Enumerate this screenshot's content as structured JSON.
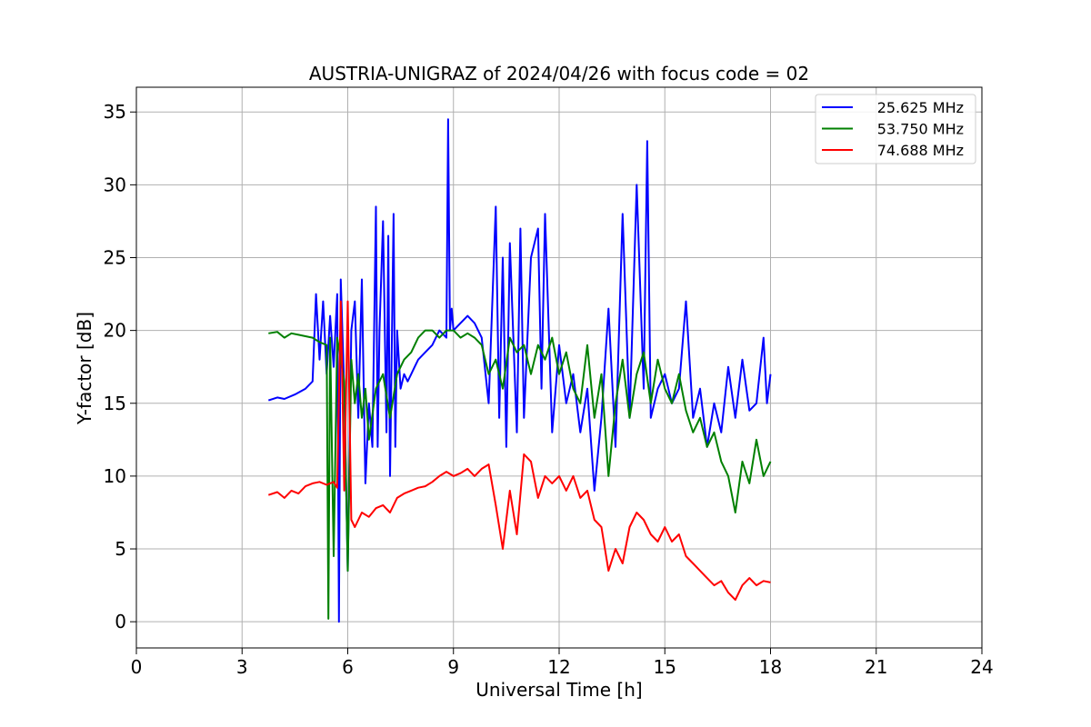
{
  "chart_data": {
    "type": "line",
    "title": "AUSTRIA-UNIGRAZ of 2024/04/26 with focus code = 02",
    "xlabel": "Universal Time [h]",
    "ylabel": "Y-factor [dB]",
    "xlim": [
      0,
      24
    ],
    "ylim": [
      -1.8,
      36.7
    ],
    "xticks": [
      0,
      3,
      6,
      9,
      12,
      15,
      18,
      21,
      24
    ],
    "yticks": [
      0,
      5,
      10,
      15,
      20,
      25,
      30,
      35
    ],
    "grid": true,
    "legend_position": "top-right",
    "series": [
      {
        "name": "25.625 MHz",
        "color": "#0000ff",
        "x": [
          3.75,
          4.0,
          4.2,
          4.5,
          4.8,
          5.0,
          5.1,
          5.2,
          5.3,
          5.4,
          5.5,
          5.6,
          5.7,
          5.75,
          5.8,
          5.9,
          6.0,
          6.1,
          6.2,
          6.3,
          6.4,
          6.5,
          6.6,
          6.7,
          6.8,
          6.85,
          6.9,
          7.0,
          7.1,
          7.15,
          7.2,
          7.3,
          7.35,
          7.4,
          7.5,
          7.6,
          7.7,
          7.8,
          7.9,
          8.0,
          8.2,
          8.4,
          8.6,
          8.8,
          8.85,
          8.9,
          8.95,
          9.0,
          9.2,
          9.4,
          9.6,
          9.8,
          10.0,
          10.2,
          10.3,
          10.4,
          10.5,
          10.6,
          10.8,
          10.9,
          11.0,
          11.2,
          11.4,
          11.5,
          11.6,
          11.8,
          12.0,
          12.2,
          12.4,
          12.6,
          12.8,
          13.0,
          13.2,
          13.4,
          13.6,
          13.8,
          14.0,
          14.2,
          14.4,
          14.5,
          14.6,
          14.8,
          15.0,
          15.2,
          15.4,
          15.6,
          15.8,
          16.0,
          16.2,
          16.4,
          16.6,
          16.8,
          17.0,
          17.2,
          17.4,
          17.6,
          17.8,
          17.9,
          18.0
        ],
        "y": [
          15.2,
          15.4,
          15.3,
          15.6,
          16.0,
          16.5,
          22.5,
          18.0,
          22.0,
          17.0,
          21.0,
          17.5,
          22.5,
          0.0,
          23.5,
          16.0,
          3.5,
          20.0,
          22.0,
          14.0,
          23.5,
          9.5,
          15.0,
          12.0,
          28.5,
          12.0,
          20.0,
          27.5,
          13.0,
          26.5,
          10.0,
          28.0,
          12.0,
          20.0,
          16.0,
          17.0,
          16.5,
          17.0,
          17.5,
          18.0,
          18.5,
          19.0,
          20.0,
          19.5,
          34.5,
          20.0,
          21.5,
          20.0,
          20.5,
          21.0,
          20.5,
          19.5,
          15.0,
          28.5,
          14.0,
          25.0,
          12.0,
          26.0,
          13.0,
          27.0,
          14.0,
          25.0,
          27.0,
          16.0,
          28.0,
          13.0,
          19.0,
          15.0,
          17.0,
          13.0,
          16.0,
          9.0,
          14.0,
          21.5,
          12.0,
          28.0,
          14.0,
          30.0,
          16.0,
          33.0,
          14.0,
          16.0,
          17.0,
          15.0,
          16.0,
          22.0,
          14.0,
          16.0,
          12.0,
          15.0,
          13.0,
          17.5,
          14.0,
          18.0,
          14.5,
          15.0,
          19.5,
          15.0,
          17.0
        ]
      },
      {
        "name": "53.750 MHz",
        "color": "#008000",
        "x": [
          3.75,
          4.0,
          4.2,
          4.4,
          4.6,
          4.8,
          5.0,
          5.2,
          5.4,
          5.45,
          5.5,
          5.6,
          5.7,
          5.8,
          5.9,
          6.0,
          6.1,
          6.2,
          6.3,
          6.4,
          6.5,
          6.6,
          6.8,
          7.0,
          7.2,
          7.4,
          7.6,
          7.8,
          8.0,
          8.2,
          8.4,
          8.6,
          8.8,
          9.0,
          9.2,
          9.4,
          9.6,
          9.8,
          10.0,
          10.2,
          10.4,
          10.6,
          10.8,
          11.0,
          11.2,
          11.4,
          11.6,
          11.8,
          12.0,
          12.2,
          12.4,
          12.6,
          12.8,
          13.0,
          13.2,
          13.4,
          13.6,
          13.8,
          14.0,
          14.2,
          14.4,
          14.6,
          14.8,
          15.0,
          15.2,
          15.4,
          15.6,
          15.8,
          16.0,
          16.2,
          16.4,
          16.6,
          16.8,
          17.0,
          17.2,
          17.4,
          17.6,
          17.8,
          18.0
        ],
        "y": [
          19.8,
          19.9,
          19.5,
          19.8,
          19.7,
          19.6,
          19.5,
          19.2,
          19.0,
          0.2,
          19.5,
          4.5,
          19.5,
          18.0,
          16.5,
          3.5,
          18.0,
          15.0,
          17.0,
          14.0,
          16.0,
          12.5,
          16.0,
          17.0,
          14.0,
          17.0,
          18.0,
          18.5,
          19.5,
          20.0,
          20.0,
          19.5,
          20.0,
          20.0,
          19.5,
          19.8,
          19.5,
          19.0,
          17.0,
          18.0,
          16.0,
          19.5,
          18.5,
          19.0,
          17.0,
          19.0,
          18.0,
          19.5,
          17.0,
          18.5,
          16.0,
          15.0,
          19.0,
          14.0,
          17.0,
          10.0,
          15.0,
          18.0,
          14.0,
          17.0,
          18.5,
          15.0,
          18.0,
          16.0,
          15.0,
          17.0,
          14.5,
          13.0,
          14.0,
          12.0,
          13.0,
          11.0,
          10.0,
          7.5,
          11.0,
          9.5,
          12.5,
          10.0,
          11.0
        ]
      },
      {
        "name": "74.688 MHz",
        "color": "#ff0000",
        "x": [
          3.75,
          4.0,
          4.2,
          4.4,
          4.6,
          4.8,
          5.0,
          5.2,
          5.4,
          5.6,
          5.7,
          5.8,
          5.85,
          5.9,
          6.0,
          6.1,
          6.2,
          6.4,
          6.6,
          6.8,
          7.0,
          7.2,
          7.4,
          7.6,
          7.8,
          8.0,
          8.2,
          8.4,
          8.6,
          8.8,
          9.0,
          9.2,
          9.4,
          9.6,
          9.8,
          10.0,
          10.2,
          10.4,
          10.6,
          10.8,
          11.0,
          11.2,
          11.4,
          11.6,
          11.8,
          12.0,
          12.2,
          12.4,
          12.6,
          12.8,
          13.0,
          13.2,
          13.4,
          13.6,
          13.8,
          14.0,
          14.2,
          14.4,
          14.6,
          14.8,
          15.0,
          15.2,
          15.4,
          15.6,
          15.8,
          16.0,
          16.2,
          16.4,
          16.6,
          16.8,
          17.0,
          17.2,
          17.4,
          17.6,
          17.8,
          18.0
        ],
        "y": [
          8.7,
          8.9,
          8.5,
          9.0,
          8.8,
          9.3,
          9.5,
          9.6,
          9.4,
          9.6,
          9.2,
          22.0,
          16.0,
          9.0,
          22.0,
          7.0,
          6.5,
          7.5,
          7.2,
          7.8,
          8.0,
          7.5,
          8.5,
          8.8,
          9.0,
          9.2,
          9.3,
          9.6,
          10.0,
          10.3,
          10.0,
          10.2,
          10.5,
          10.0,
          10.5,
          10.8,
          8.0,
          5.0,
          9.0,
          6.0,
          11.5,
          11.0,
          8.5,
          10.0,
          9.5,
          10.0,
          9.0,
          10.0,
          8.5,
          9.0,
          7.0,
          6.5,
          3.5,
          5.0,
          4.0,
          6.5,
          7.5,
          7.0,
          6.0,
          5.5,
          6.5,
          5.5,
          6.0,
          4.5,
          4.0,
          3.5,
          3.0,
          2.5,
          2.8,
          2.0,
          1.5,
          2.5,
          3.0,
          2.5,
          2.8,
          2.7
        ]
      }
    ]
  }
}
